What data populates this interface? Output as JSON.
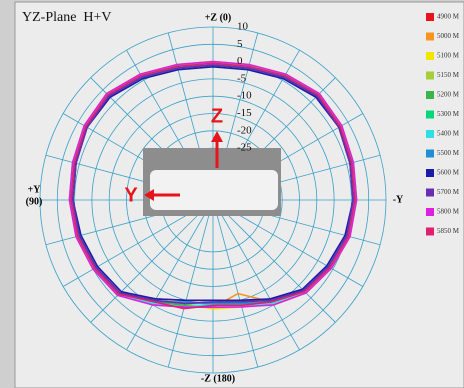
{
  "chart_data": {
    "type": "polar",
    "title": "YZ-Plane  H+V",
    "axis_labels": {
      "top": "+Z (0)",
      "bottom": "-Z (180)",
      "left": [
        "+Y",
        "(90)"
      ],
      "right": "-Y"
    },
    "annotations": [
      "Z",
      "Y"
    ],
    "rlim": [
      -40,
      10
    ],
    "rticks": [
      10,
      5,
      0,
      -5,
      -10,
      -15,
      -20,
      -25
    ],
    "theta": [
      0,
      15,
      30,
      45,
      60,
      75,
      90,
      105,
      120,
      135,
      150,
      165,
      180,
      195,
      210,
      225,
      240,
      255,
      270,
      285,
      300,
      315,
      330,
      345
    ],
    "series": [
      {
        "name": "4900 M",
        "color": "#e8141c",
        "values": [
          -1,
          -0.5,
          1,
          2.5,
          2,
          1,
          0.5,
          0,
          -1,
          -2,
          -7,
          -10,
          -11,
          -9.5,
          -7,
          -3,
          -1.5,
          0,
          0.5,
          1,
          2,
          2.5,
          1,
          -0.5
        ]
      },
      {
        "name": "5000 M",
        "color": "#f7941d",
        "values": [
          -0.5,
          0,
          1.5,
          3,
          2.5,
          1.5,
          1,
          0.5,
          -0.5,
          -1.5,
          -5,
          -8,
          -9,
          -12,
          -6,
          -2.5,
          -1,
          0.5,
          1,
          1.5,
          2.5,
          3,
          1.5,
          0
        ]
      },
      {
        "name": "5100 M",
        "color": "#f2e600",
        "values": [
          0,
          0.5,
          2,
          3.5,
          3,
          2,
          1.5,
          1,
          0,
          -1,
          -6.5,
          -9,
          -8.5,
          -8,
          -5.5,
          -2,
          -0.5,
          1,
          1.5,
          2,
          3,
          3.5,
          2,
          0.5
        ]
      },
      {
        "name": "5150 M",
        "color": "#a6ce39",
        "values": [
          0,
          0.5,
          2,
          3,
          3,
          2,
          1.5,
          1,
          0,
          -1,
          -5.5,
          -9.5,
          -10,
          -8.5,
          -5,
          -2,
          -0.5,
          1,
          1.5,
          2,
          3,
          3,
          2,
          0.5
        ]
      },
      {
        "name": "5200 M",
        "color": "#39b54a",
        "values": [
          -0.5,
          0,
          1.5,
          3,
          2.5,
          1.5,
          1,
          0,
          -0.5,
          -1.5,
          -6,
          -8.5,
          -9.5,
          -9,
          -6,
          -2.5,
          -1,
          0.5,
          1,
          1.5,
          2.5,
          3,
          1.5,
          0
        ]
      },
      {
        "name": "5300 M",
        "color": "#00d87a",
        "values": [
          -1,
          -0.5,
          1,
          2.5,
          2.5,
          1.5,
          0.5,
          0,
          -1,
          -2,
          -6.5,
          -9,
          -10.5,
          -9.5,
          -6.5,
          -3,
          -1.5,
          0,
          0.5,
          1,
          2,
          2.5,
          1,
          -0.5
        ]
      },
      {
        "name": "5400 M",
        "color": "#2ee0e6",
        "values": [
          -0.5,
          0,
          1.5,
          3,
          2.5,
          2,
          1.5,
          0.5,
          -0.5,
          -1,
          -5.5,
          -8,
          -10,
          -8.5,
          -5.5,
          -2.5,
          -1,
          0.5,
          1.5,
          2,
          2.5,
          3,
          1.5,
          0
        ]
      },
      {
        "name": "5500 M",
        "color": "#1e90d6",
        "values": [
          -1,
          -0.5,
          1,
          2.5,
          2,
          1.5,
          1,
          0,
          -1,
          -2,
          -6,
          -9.5,
          -10,
          -9,
          -6,
          -3,
          -1.5,
          0,
          1,
          1.5,
          2,
          2.5,
          1,
          -0.5
        ]
      },
      {
        "name": "5600 M",
        "color": "#1c1ca8",
        "values": [
          -1.5,
          -1,
          0.5,
          2,
          2,
          1,
          0.5,
          -0.5,
          -1.5,
          -2.5,
          -7,
          -10,
          -11,
          -10,
          -7,
          -3.5,
          -2,
          -0.5,
          0.5,
          1,
          2,
          2,
          0.5,
          -1
        ]
      },
      {
        "name": "5700 M",
        "color": "#6a2cb0",
        "values": [
          -1,
          -0.5,
          1,
          2.5,
          2,
          1,
          0.5,
          0,
          -1,
          -2,
          -6.5,
          -9,
          -10.5,
          -9.5,
          -6.5,
          -3,
          -1.5,
          0,
          0.5,
          1,
          2,
          2.5,
          1,
          -0.5
        ]
      },
      {
        "name": "5800 M",
        "color": "#e020e0",
        "values": [
          0,
          0.5,
          2,
          3.5,
          3,
          2,
          1.5,
          1,
          0,
          -1,
          -5,
          -8,
          -9,
          -8,
          -5,
          -2,
          -0.5,
          1,
          1.5,
          2,
          3,
          3.5,
          2,
          0.5
        ]
      },
      {
        "name": "5850 M",
        "color": "#e0206e",
        "values": [
          -0.5,
          0,
          1.5,
          3,
          2.5,
          1.5,
          1,
          0.5,
          -0.5,
          -1.5,
          -6,
          -7.5,
          -9.5,
          -8.5,
          -6,
          -2.5,
          -1,
          0.5,
          1,
          1.5,
          2.5,
          3,
          1.5,
          0
        ]
      }
    ]
  }
}
